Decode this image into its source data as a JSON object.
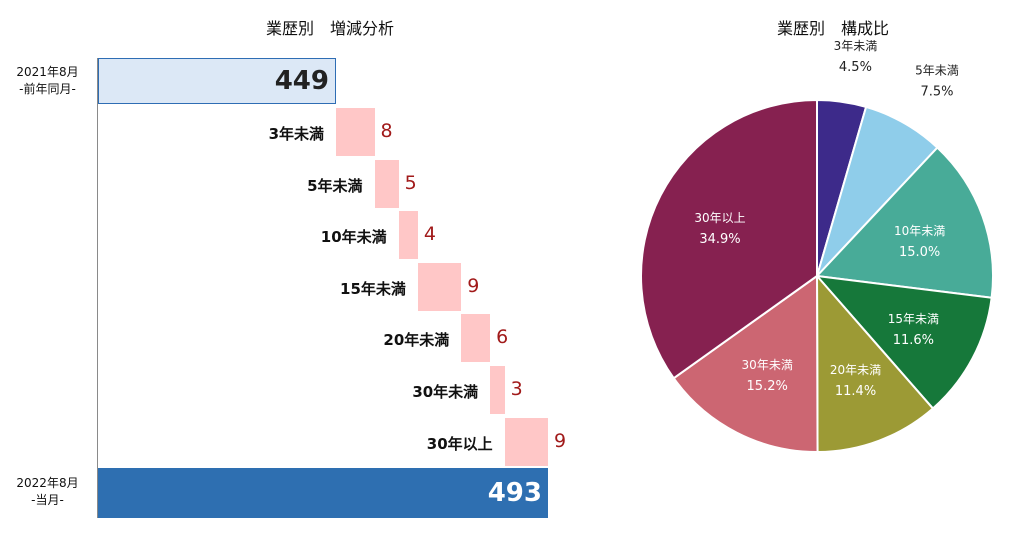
{
  "chart_data": [
    {
      "type": "bar",
      "subtype": "waterfall",
      "title": "業歴別　増減分析",
      "start": {
        "label_line1": "2021年8月",
        "label_line2": "-前年同月-",
        "value": 449
      },
      "steps": [
        {
          "category": "3年未満",
          "value": 8
        },
        {
          "category": "5年未満",
          "value": 5
        },
        {
          "category": "10年未満",
          "value": 4
        },
        {
          "category": "15年未満",
          "value": 9
        },
        {
          "category": "20年未満",
          "value": 6
        },
        {
          "category": "30年未満",
          "value": 3
        },
        {
          "category": "30年以上",
          "value": 9
        }
      ],
      "end": {
        "label_line1": "2022年8月",
        "label_line2": "-当月-",
        "value": 493
      },
      "colors": {
        "start": "#dce8f6",
        "increase": "#ffc7c7",
        "end": "#2e6fb1",
        "value_text": "#a11a1a"
      }
    },
    {
      "type": "pie",
      "title": "業歴別　構成比",
      "slices": [
        {
          "label": "3年未満",
          "percent_label": "4.5%",
          "value": 4.5,
          "color": "#3d2a8a"
        },
        {
          "label": "5年未満",
          "percent_label": "7.5%",
          "value": 7.5,
          "color": "#8fcdea"
        },
        {
          "label": "10年未満",
          "percent_label": "15.0%",
          "value": 15.0,
          "color": "#48ab98"
        },
        {
          "label": "15年未満",
          "percent_label": "11.6%",
          "value": 11.6,
          "color": "#16783a"
        },
        {
          "label": "20年未満",
          "percent_label": "11.4%",
          "value": 11.4,
          "color": "#9c9a35"
        },
        {
          "label": "30年未満",
          "percent_label": "15.2%",
          "value": 15.2,
          "color": "#cc6672"
        },
        {
          "label": "30年以上",
          "percent_label": "34.9%",
          "value": 34.9,
          "color": "#862150"
        }
      ]
    }
  ]
}
